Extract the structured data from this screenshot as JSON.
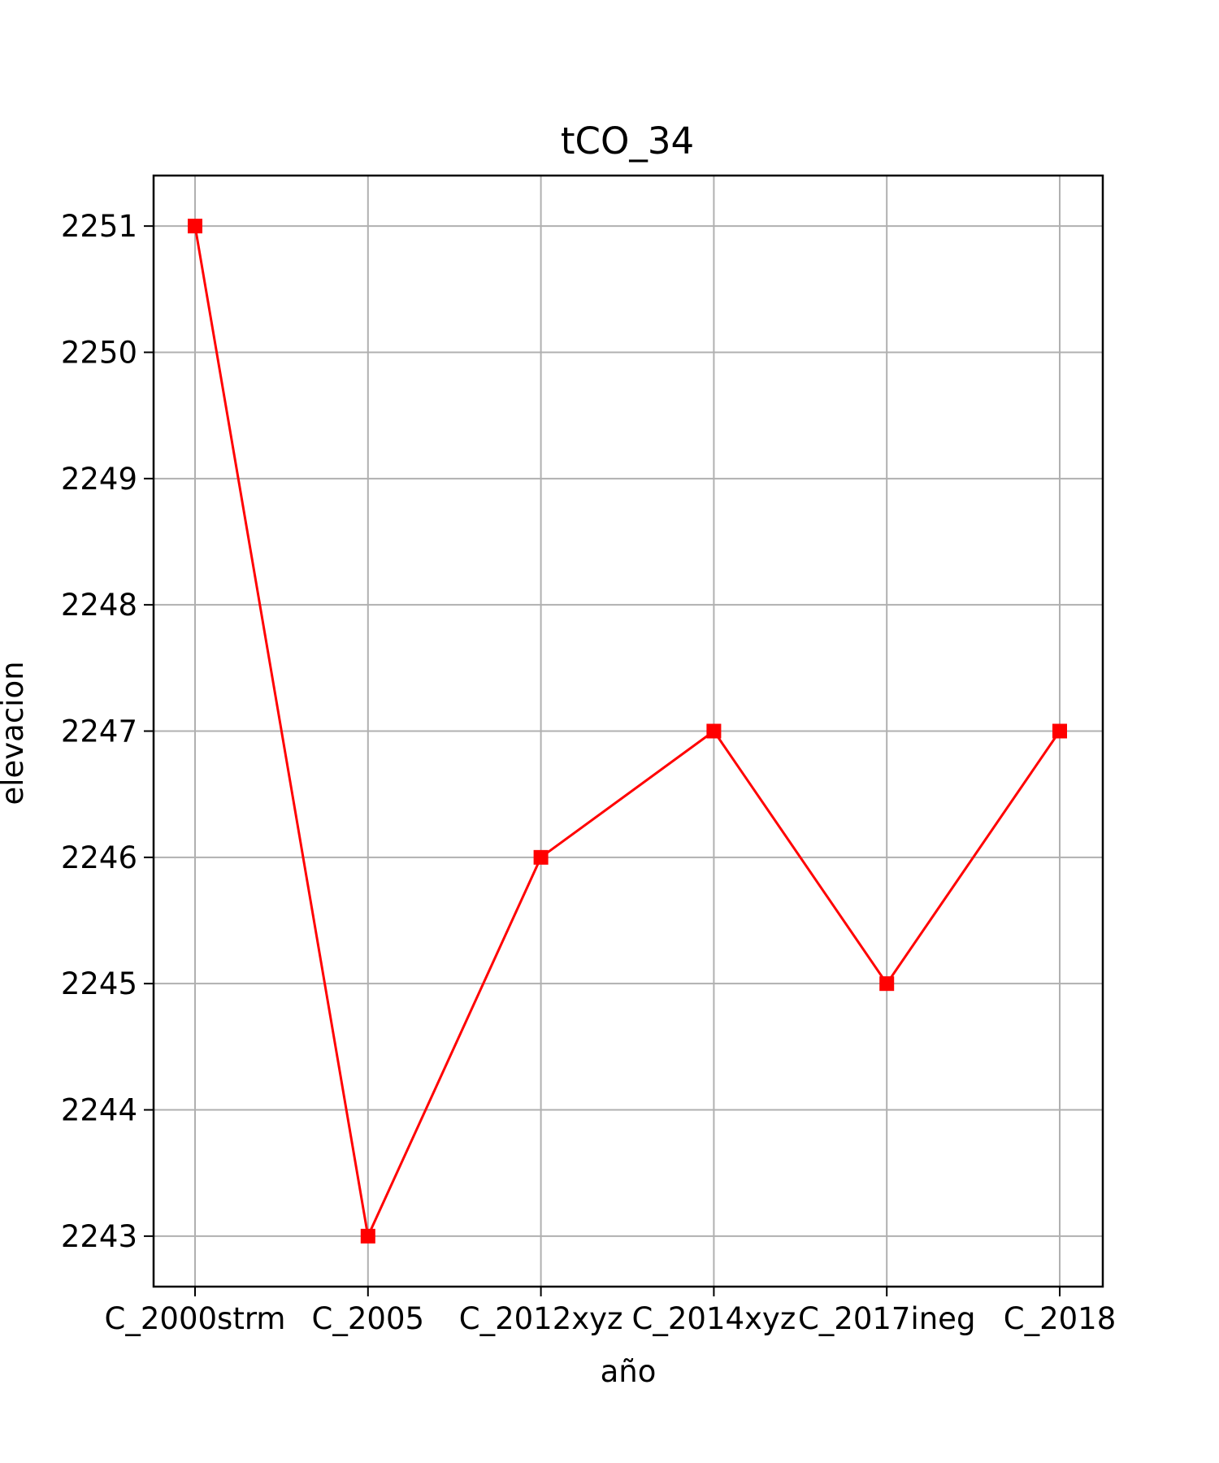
{
  "chart_data": {
    "type": "line",
    "title": "tCO_34",
    "xlabel": "año",
    "ylabel": "elevacion",
    "categories": [
      "C_2000strm",
      "C_2005",
      "C_2012xyz",
      "C_2014xyz",
      "C_2017ineg",
      "C_2018"
    ],
    "series": [
      {
        "values": [
          2251,
          2243,
          2246,
          2247,
          2245,
          2247
        ],
        "color": "#ff0000",
        "marker": "square"
      }
    ],
    "yticks": [
      2243,
      2244,
      2245,
      2246,
      2247,
      2248,
      2249,
      2250,
      2251
    ],
    "ylim": [
      2242.6,
      2251.4
    ],
    "grid": true,
    "grid_color": "#b0b0b0"
  }
}
